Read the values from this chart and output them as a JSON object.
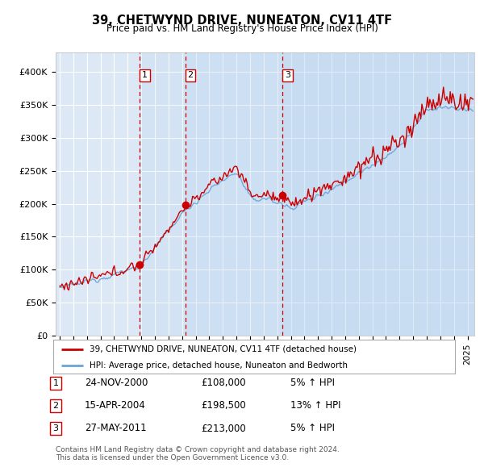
{
  "title": "39, CHETWYND DRIVE, NUNEATON, CV11 4TF",
  "subtitle": "Price paid vs. HM Land Registry's House Price Index (HPI)",
  "ylabel_ticks": [
    "£0",
    "£50K",
    "£100K",
    "£150K",
    "£200K",
    "£250K",
    "£300K",
    "£350K",
    "£400K"
  ],
  "ytick_values": [
    0,
    50000,
    100000,
    150000,
    200000,
    250000,
    300000,
    350000,
    400000
  ],
  "ylim": [
    0,
    430000
  ],
  "xlim_start": 1994.7,
  "xlim_end": 2025.5,
  "background_color": "#ffffff",
  "plot_bg_color": "#dce8f5",
  "grid_color": "#ffffff",
  "sale_dates": [
    2000.9,
    2004.25,
    2011.4
  ],
  "sale_prices": [
    108000,
    198500,
    213000
  ],
  "sale_labels": [
    "1",
    "2",
    "3"
  ],
  "legend_line1": "39, CHETWYND DRIVE, NUNEATON, CV11 4TF (detached house)",
  "legend_line2": "HPI: Average price, detached house, Nuneaton and Bedworth",
  "table_data": [
    [
      "1",
      "24-NOV-2000",
      "£108,000",
      "5% ↑ HPI"
    ],
    [
      "2",
      "15-APR-2004",
      "£198,500",
      "13% ↑ HPI"
    ],
    [
      "3",
      "27-MAY-2011",
      "£213,000",
      "5% ↑ HPI"
    ]
  ],
  "footer1": "Contains HM Land Registry data © Crown copyright and database right 2024.",
  "footer2": "This data is licensed under the Open Government Licence v3.0.",
  "hpi_color": "#6ba3d6",
  "price_color": "#cc0000",
  "sale_marker_color": "#cc0000",
  "dashed_line_color": "#cc0000",
  "shade_color": "#c8d8ee"
}
